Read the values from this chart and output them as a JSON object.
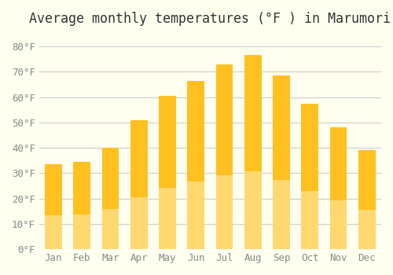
{
  "title": "Average monthly temperatures (°F ) in Marumori",
  "months": [
    "Jan",
    "Feb",
    "Mar",
    "Apr",
    "May",
    "Jun",
    "Jul",
    "Aug",
    "Sep",
    "Oct",
    "Nov",
    "Dec"
  ],
  "values": [
    33.5,
    34.5,
    40,
    51,
    60.5,
    66.5,
    73,
    76.5,
    68.5,
    57.5,
    48,
    39
  ],
  "bar_color_top": "#FFC020",
  "bar_color_bottom": "#FFD870",
  "background_color": "#FFFFF0",
  "grid_color": "#CCCCCC",
  "ylim": [
    0,
    85
  ],
  "yticks": [
    0,
    10,
    20,
    30,
    40,
    50,
    60,
    70,
    80
  ],
  "title_fontsize": 12,
  "tick_fontsize": 9,
  "font_family": "monospace"
}
